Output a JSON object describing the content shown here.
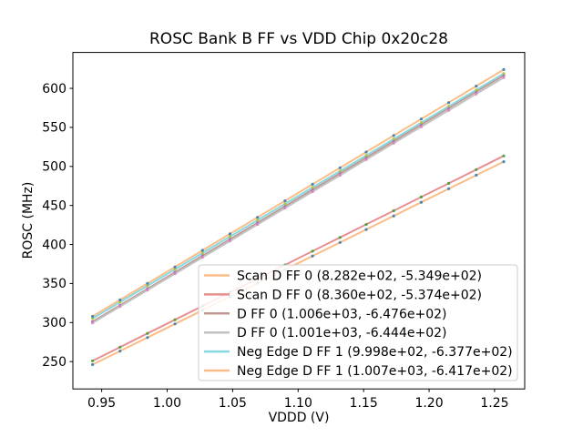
{
  "title": "ROSC Bank B FF vs VDD Chip 0x20c28",
  "chart_data": {
    "type": "line",
    "title": "ROSC Bank B FF vs VDD Chip 0x20c28",
    "xlabel": "VDDD (V)",
    "ylabel": "ROSC (MHz)",
    "xlim": [
      0.928,
      1.273
    ],
    "ylim": [
      215,
      646
    ],
    "xticks": [
      0.95,
      1.0,
      1.05,
      1.1,
      1.15,
      1.2,
      1.25
    ],
    "yticks": [
      250,
      300,
      350,
      400,
      450,
      500,
      550,
      600
    ],
    "grid": false,
    "legend_position": "lower right",
    "legend_border_color": "#cccccc",
    "x": [
      0.943,
      0.964,
      0.985,
      1.006,
      1.027,
      1.048,
      1.069,
      1.09,
      1.111,
      1.132,
      1.152,
      1.173,
      1.194,
      1.215,
      1.236,
      1.257
    ],
    "series": [
      {
        "name": "Scan D FF 0 (8.282e+02, -5.349e+02)",
        "fit": {
          "slope": 828.2,
          "intercept": -534.9
        },
        "line_color": "#fbbd87",
        "marker_color": "#1f77b4",
        "values": [
          246.1,
          263.5,
          280.9,
          298.3,
          315.7,
          333.1,
          350.4,
          367.8,
          385.2,
          402.6,
          419.2,
          436.6,
          454.0,
          471.4,
          488.8,
          506.1
        ]
      },
      {
        "name": "Scan D FF 0 (8.360e+02, -5.374e+02)",
        "fit": {
          "slope": 836.0,
          "intercept": -537.4
        },
        "line_color": "#e69091",
        "marker_color": "#2ca02c",
        "values": [
          250.9,
          268.5,
          286.1,
          303.6,
          321.2,
          338.7,
          356.3,
          373.8,
          391.4,
          409.0,
          425.7,
          443.2,
          460.8,
          478.3,
          495.9,
          513.5
        ]
      },
      {
        "name": "D FF 0 (1.006e+03, -6.476e+02)",
        "fit": {
          "slope": 1006.0,
          "intercept": -647.6
        },
        "line_color": "#c09a93",
        "marker_color": "#9467bd",
        "values": [
          301.1,
          322.2,
          343.3,
          364.4,
          385.6,
          406.7,
          427.8,
          448.9,
          470.1,
          491.2,
          511.3,
          532.4,
          553.6,
          574.7,
          595.8,
          616.9
        ]
      },
      {
        "name": "D FF 0 (1.001e+03, -6.444e+02)",
        "fit": {
          "slope": 1001.0,
          "intercept": -644.4
        },
        "line_color": "#c2c2c2",
        "marker_color": "#e377c2",
        "values": [
          299.5,
          320.6,
          341.6,
          362.6,
          383.6,
          404.6,
          425.7,
          446.7,
          467.7,
          488.7,
          508.8,
          529.8,
          550.8,
          571.8,
          592.8,
          613.9
        ]
      },
      {
        "name": "Neg Edge D FF 1 (9.998e+02, -6.377e+02)",
        "fit": {
          "slope": 999.8,
          "intercept": -637.7
        },
        "line_color": "#87d9e2",
        "marker_color": "#bcbd22",
        "values": [
          305.1,
          326.1,
          347.1,
          368.1,
          389.1,
          410.1,
          431.1,
          452.1,
          473.1,
          494.1,
          514.1,
          535.1,
          556.1,
          577.1,
          598.1,
          619.1
        ]
      },
      {
        "name": "Neg Edge D FF 1 (1.007e+03, -6.417e+02)",
        "fit": {
          "slope": 1007.0,
          "intercept": -641.7
        },
        "line_color": "#fbbd87",
        "marker_color": "#1f77b4",
        "values": [
          307.9,
          329.0,
          350.2,
          371.3,
          392.5,
          413.6,
          434.8,
          455.9,
          477.1,
          498.2,
          518.4,
          539.5,
          560.7,
          581.8,
          602.9,
          624.1
        ]
      }
    ]
  }
}
